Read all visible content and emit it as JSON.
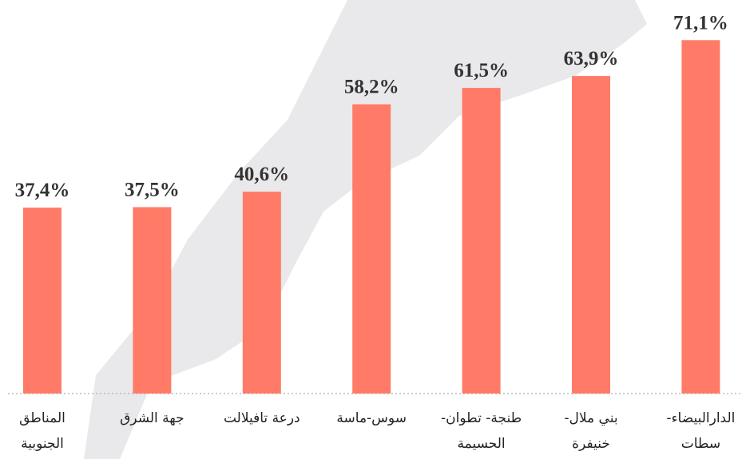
{
  "chart_data": {
    "type": "bar",
    "categories": [
      "المناطق\nالجنوبية",
      "جهة الشرق",
      "درعة تافيلالت",
      "سوس-ماسة",
      "طنجة- تطوان-\nالحسيمة",
      "بني ملال-\nخنيفرة",
      "الدارالبيضاء-\nسطات"
    ],
    "values": [
      37.4,
      37.5,
      40.6,
      58.2,
      61.5,
      63.9,
      71.1
    ],
    "value_labels": [
      "37,4%",
      "37,5%",
      "40,6%",
      "58,2%",
      "61,5%",
      "63,9%",
      "71,1%"
    ],
    "color": "#ff7b67",
    "ylim": [
      0,
      75
    ]
  }
}
